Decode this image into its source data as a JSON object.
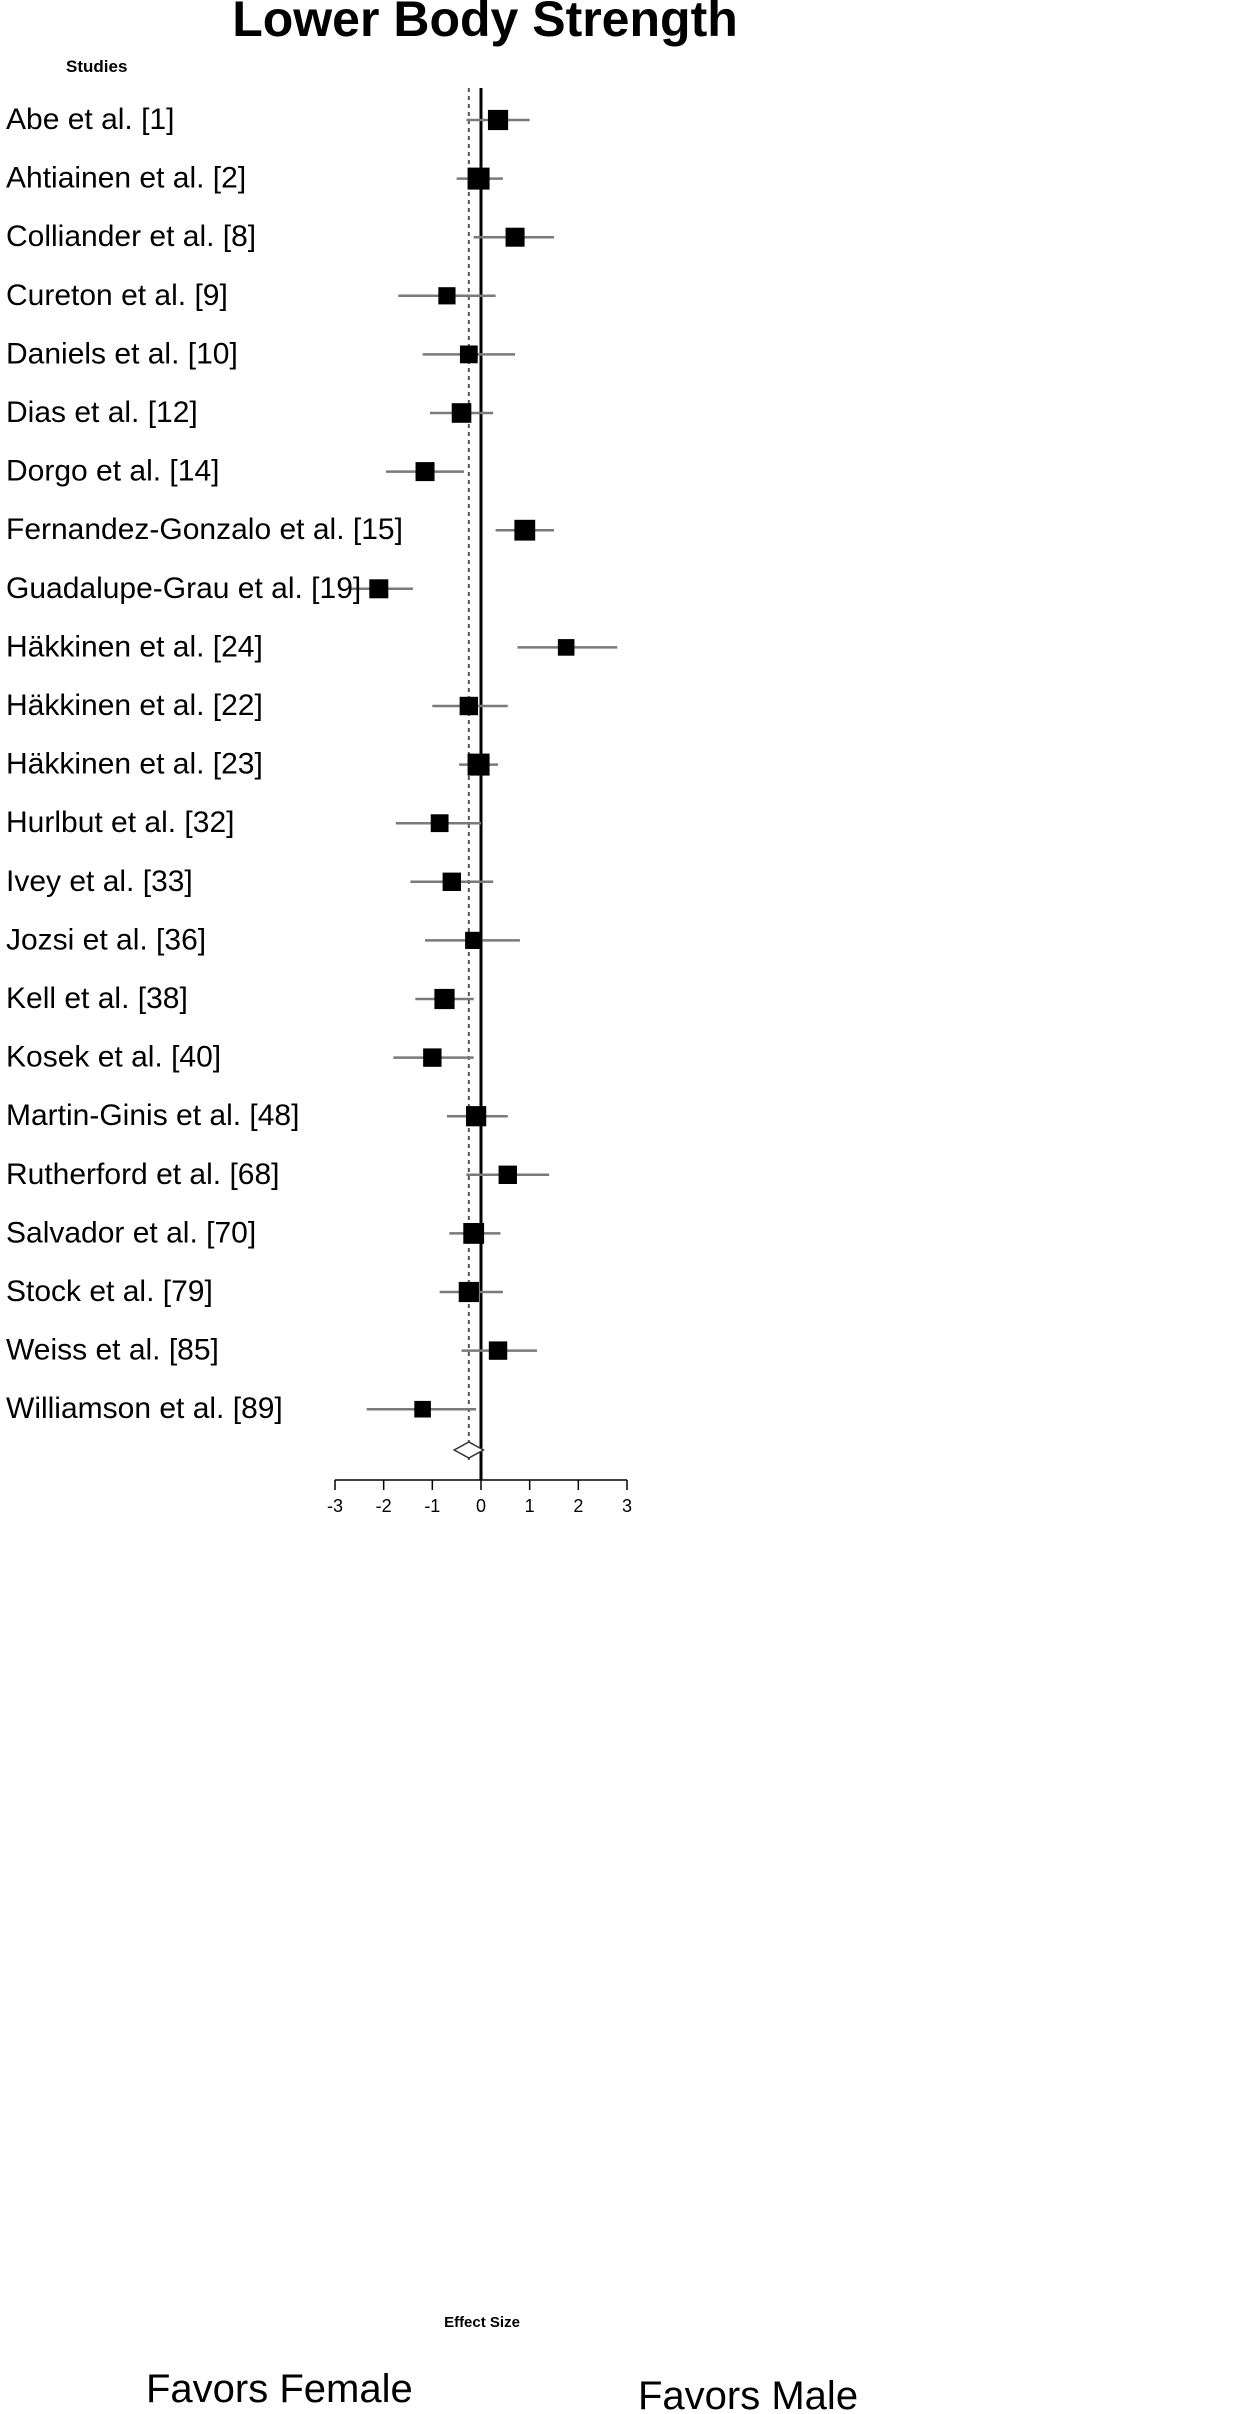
{
  "chart_data": {
    "type": "forest",
    "title": "Lower Body Strength",
    "column_header": "Studies",
    "xlabel": "Effect Size",
    "xlim": [
      -3,
      3
    ],
    "xticks": [
      "-3",
      "-2",
      "-1",
      "0",
      "1",
      "2",
      "3"
    ],
    "left_annotation": "Favors Female",
    "right_annotation": "Favors Male",
    "pooled_estimate": -0.25,
    "pooled_ci": [
      -0.55,
      0.05
    ],
    "studies": [
      {
        "label": "Abe et al. [1]",
        "estimate": 0.35,
        "ci": [
          -0.3,
          1.0
        ],
        "weight": 0.85
      },
      {
        "label": "Ahtiainen et al. [2]",
        "estimate": -0.05,
        "ci": [
          -0.5,
          0.45
        ],
        "weight": 1.0
      },
      {
        "label": "Colliander et al. [8]",
        "estimate": 0.7,
        "ci": [
          -0.15,
          1.5
        ],
        "weight": 0.75
      },
      {
        "label": "Cureton et al. [9]",
        "estimate": -0.7,
        "ci": [
          -1.7,
          0.3
        ],
        "weight": 0.6
      },
      {
        "label": "Daniels et al. [10]",
        "estimate": -0.25,
        "ci": [
          -1.2,
          0.7
        ],
        "weight": 0.65
      },
      {
        "label": "Dias et al. [12]",
        "estimate": -0.4,
        "ci": [
          -1.05,
          0.25
        ],
        "weight": 0.8
      },
      {
        "label": "Dorgo et al. [14]",
        "estimate": -1.15,
        "ci": [
          -1.95,
          -0.35
        ],
        "weight": 0.75
      },
      {
        "label": "Fernandez-Gonzalo et al. [15]",
        "estimate": 0.9,
        "ci": [
          0.3,
          1.5
        ],
        "weight": 0.9
      },
      {
        "label": "Guadalupe-Grau et al. [19]",
        "estimate": -2.1,
        "ci": [
          -2.7,
          -1.4
        ],
        "weight": 0.75
      },
      {
        "label": "Häkkinen et al. [24]",
        "estimate": 1.75,
        "ci": [
          0.75,
          2.8
        ],
        "weight": 0.55
      },
      {
        "label": "Häkkinen et al. [22]",
        "estimate": -0.25,
        "ci": [
          -1.0,
          0.55
        ],
        "weight": 0.7
      },
      {
        "label": "Häkkinen et al. [23]",
        "estimate": -0.05,
        "ci": [
          -0.45,
          0.35
        ],
        "weight": 1.0
      },
      {
        "label": "Hurlbut et al. [32]",
        "estimate": -0.85,
        "ci": [
          -1.75,
          0.0
        ],
        "weight": 0.65
      },
      {
        "label": "Ivey et al. [33]",
        "estimate": -0.6,
        "ci": [
          -1.45,
          0.25
        ],
        "weight": 0.7
      },
      {
        "label": "Jozsi et al. [36]",
        "estimate": -0.15,
        "ci": [
          -1.15,
          0.8
        ],
        "weight": 0.6
      },
      {
        "label": "Kell et al. [38]",
        "estimate": -0.75,
        "ci": [
          -1.35,
          -0.15
        ],
        "weight": 0.85
      },
      {
        "label": "Kosek et al. [40]",
        "estimate": -1.0,
        "ci": [
          -1.8,
          -0.15
        ],
        "weight": 0.7
      },
      {
        "label": "Martin-Ginis et al. [48]",
        "estimate": -0.1,
        "ci": [
          -0.7,
          0.55
        ],
        "weight": 0.85
      },
      {
        "label": "Rutherford et al. [68]",
        "estimate": 0.55,
        "ci": [
          -0.3,
          1.4
        ],
        "weight": 0.7
      },
      {
        "label": "Salvador et al. [70]",
        "estimate": -0.15,
        "ci": [
          -0.65,
          0.4
        ],
        "weight": 0.9
      },
      {
        "label": "Stock et al. [79]",
        "estimate": -0.25,
        "ci": [
          -0.85,
          0.45
        ],
        "weight": 0.85
      },
      {
        "label": "Weiss et al. [85]",
        "estimate": 0.35,
        "ci": [
          -0.4,
          1.15
        ],
        "weight": 0.7
      },
      {
        "label": "Williamson et al. [89]",
        "estimate": -1.2,
        "ci": [
          -2.35,
          -0.1
        ],
        "weight": 0.55
      }
    ],
    "colors": {
      "marker": "#000000",
      "ci_line": "#7a7a7a",
      "zero_line": "#000000",
      "pooled_line": "#555555"
    }
  }
}
